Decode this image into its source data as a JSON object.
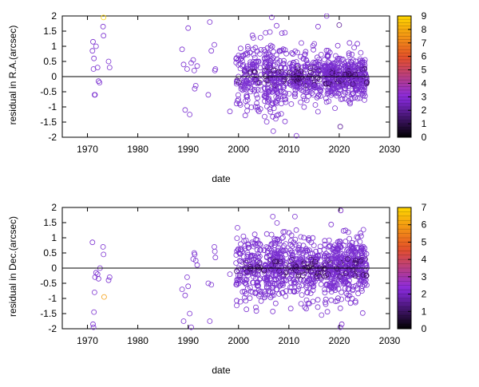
{
  "chart_data": [
    {
      "type": "scatter",
      "title": "",
      "xlabel": "date",
      "ylabel": "residual in R.A.(arcsec)",
      "xlim": [
        1965,
        2030
      ],
      "ylim": [
        -2,
        2
      ],
      "xticks": [
        "1970",
        "1980",
        "1990",
        "2000",
        "2010",
        "2020",
        "2030"
      ],
      "yticks": [
        "2",
        "1.5",
        "1",
        "0.5",
        "0",
        "-0.5",
        "-1",
        "-1.5",
        "-2"
      ],
      "grid": false,
      "zero_line": 0,
      "marker": "open-circle",
      "color_scale": {
        "min": 0,
        "max": 9,
        "ticks": [
          "9",
          "8",
          "7",
          "6",
          "5",
          "4",
          "3",
          "2",
          "1",
          "0"
        ]
      },
      "colors": {
        "low": "#000000",
        "mid": "#8a2be2",
        "high": "#ffd700",
        "points": "#7a2fd0"
      },
      "points": [
        [
          1971.0,
          0.85,
          1
        ],
        [
          1971.1,
          1.15,
          1
        ],
        [
          1971.2,
          0.25,
          1
        ],
        [
          1971.3,
          0.6,
          1
        ],
        [
          1971.4,
          -0.6,
          1
        ],
        [
          1971.5,
          -0.6,
          1
        ],
        [
          1971.7,
          1.0,
          1
        ],
        [
          1972.0,
          0.3,
          1
        ],
        [
          1972.2,
          -0.15,
          1
        ],
        [
          1972.4,
          -0.2,
          1
        ],
        [
          1973.1,
          1.65,
          1
        ],
        [
          1973.2,
          1.35,
          1
        ],
        [
          1973.2,
          1.95,
          9
        ],
        [
          1974.2,
          0.5,
          1
        ],
        [
          1974.4,
          0.3,
          1
        ],
        [
          1988.8,
          0.9,
          1
        ],
        [
          1989.1,
          0.4,
          1
        ],
        [
          1989.4,
          -1.1,
          1
        ],
        [
          1989.8,
          0.25,
          1
        ],
        [
          1990.0,
          1.6,
          1
        ],
        [
          1990.3,
          -1.25,
          1
        ],
        [
          1990.6,
          0.45,
          1
        ],
        [
          1991.0,
          0.55,
          1
        ],
        [
          1991.2,
          0.2,
          1
        ],
        [
          1991.3,
          -0.4,
          1
        ],
        [
          1991.5,
          -0.3,
          1
        ],
        [
          1991.8,
          0.35,
          1
        ],
        [
          1994.0,
          -0.6,
          1
        ],
        [
          1994.3,
          1.8,
          1
        ],
        [
          1994.6,
          0.85,
          1
        ],
        [
          1995.2,
          1.05,
          1
        ],
        [
          1995.3,
          0.2,
          1
        ],
        [
          1995.4,
          0.25,
          1
        ],
        [
          1998.3,
          -1.15,
          1
        ]
      ],
      "dense_clusters": [
        {
          "x": [
            1999.5,
            2004.5
          ],
          "spread": 0.55,
          "count": 150,
          "extent": 1.4
        },
        {
          "x": [
            2005.0,
            2009.5
          ],
          "spread": 0.6,
          "count": 200,
          "extent": 1.7
        },
        {
          "x": [
            2010.0,
            2016.5
          ],
          "spread": 0.4,
          "count": 230,
          "extent": 1.3
        },
        {
          "x": [
            2017.0,
            2025.5
          ],
          "spread": 0.35,
          "count": 430,
          "extent": 1.55
        }
      ],
      "extra_points": [
        [
          2006.6,
          1.95,
          1
        ],
        [
          2011.5,
          -1.95,
          1
        ],
        [
          2020.0,
          1.7,
          2
        ],
        [
          2020.2,
          -1.65,
          2
        ],
        [
          2015.8,
          1.65,
          1
        ],
        [
          2017.5,
          2.0,
          1
        ],
        [
          2006.9,
          -1.8,
          1
        ]
      ]
    },
    {
      "type": "scatter",
      "title": "",
      "xlabel": "date",
      "ylabel": "residual in Dec.(arcsec)",
      "xlim": [
        1965,
        2030
      ],
      "ylim": [
        -2,
        2
      ],
      "xticks": [
        "1970",
        "1980",
        "1990",
        "2000",
        "2010",
        "2020",
        "2030"
      ],
      "yticks": [
        "2",
        "1.5",
        "1",
        "0.5",
        "0",
        "-0.5",
        "-1",
        "-1.5",
        "-2"
      ],
      "grid": false,
      "zero_line": 0,
      "marker": "open-circle",
      "color_scale": {
        "min": 0,
        "max": 7,
        "ticks": [
          "7",
          "6",
          "5",
          "4",
          "3",
          "2",
          "1",
          "0"
        ]
      },
      "colors": {
        "low": "#000000",
        "mid": "#8a2be2",
        "high": "#ffd700",
        "points": "#7a2fd0"
      },
      "points": [
        [
          1971.0,
          0.85,
          1
        ],
        [
          1971.1,
          -1.85,
          1
        ],
        [
          1971.2,
          -1.95,
          1
        ],
        [
          1971.3,
          -1.45,
          1
        ],
        [
          1971.4,
          -0.8,
          1
        ],
        [
          1971.5,
          -0.3,
          1
        ],
        [
          1971.7,
          -0.15,
          1
        ],
        [
          1972.0,
          -0.2,
          1
        ],
        [
          1972.2,
          -0.35,
          1
        ],
        [
          1972.5,
          0.0,
          1
        ],
        [
          1973.1,
          0.7,
          1
        ],
        [
          1973.2,
          0.45,
          1
        ],
        [
          1973.3,
          -0.95,
          6
        ],
        [
          1974.2,
          -0.4,
          1
        ],
        [
          1974.4,
          -0.3,
          1
        ],
        [
          1988.8,
          -0.7,
          1
        ],
        [
          1989.1,
          -1.75,
          1
        ],
        [
          1989.4,
          -0.9,
          1
        ],
        [
          1989.8,
          -0.3,
          1
        ],
        [
          1990.0,
          -0.6,
          1
        ],
        [
          1990.3,
          -1.5,
          1
        ],
        [
          1990.6,
          -1.95,
          1
        ],
        [
          1991.0,
          0.3,
          1
        ],
        [
          1991.2,
          0.5,
          1
        ],
        [
          1991.3,
          0.45,
          1
        ],
        [
          1991.5,
          0.25,
          1
        ],
        [
          1991.8,
          0.1,
          1
        ],
        [
          1994.0,
          -0.5,
          1
        ],
        [
          1994.3,
          -1.75,
          1
        ],
        [
          1994.6,
          -0.55,
          1
        ],
        [
          1995.2,
          0.7,
          1
        ],
        [
          1995.3,
          0.55,
          1
        ],
        [
          1995.4,
          0.35,
          1
        ],
        [
          1998.3,
          -0.2,
          1
        ]
      ],
      "dense_clusters": [
        {
          "x": [
            1999.5,
            2004.5
          ],
          "spread": 0.6,
          "count": 170,
          "extent": 1.55
        },
        {
          "x": [
            2005.0,
            2009.5
          ],
          "spread": 0.6,
          "count": 210,
          "extent": 1.7
        },
        {
          "x": [
            2010.0,
            2016.5
          ],
          "spread": 0.5,
          "count": 240,
          "extent": 1.5
        },
        {
          "x": [
            2017.0,
            2025.5
          ],
          "spread": 0.5,
          "count": 430,
          "extent": 1.85
        }
      ],
      "extra_points": [
        [
          2006.8,
          1.7,
          1
        ],
        [
          2011.2,
          1.7,
          1
        ],
        [
          2020.3,
          1.9,
          2
        ],
        [
          2020.5,
          -1.85,
          2
        ],
        [
          2020.2,
          -1.95,
          1
        ],
        [
          2016.5,
          -1.55,
          1
        ]
      ]
    }
  ]
}
